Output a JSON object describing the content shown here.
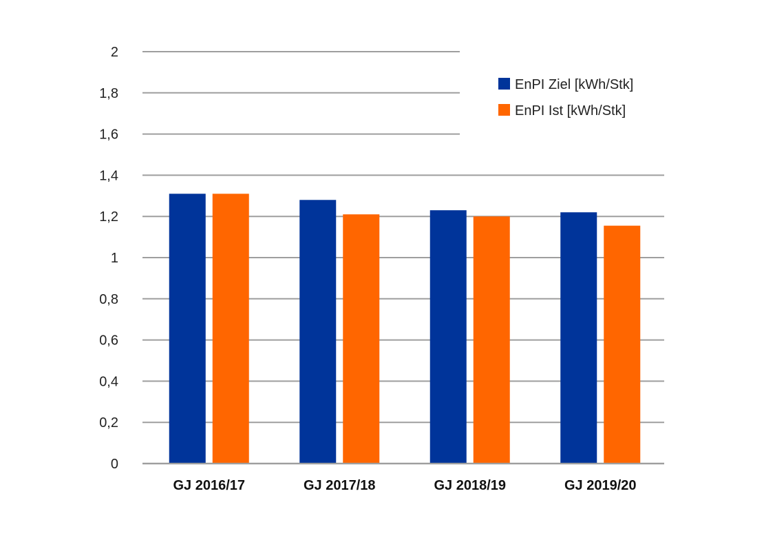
{
  "chart_data": {
    "type": "bar",
    "categories": [
      "GJ 2016/17",
      "GJ 2017/18",
      "GJ 2018/19",
      "GJ 2019/20"
    ],
    "series": [
      {
        "name": "EnPI Ziel [kWh/Stk]",
        "color": "#00349a",
        "values": [
          1.31,
          1.28,
          1.23,
          1.22
        ]
      },
      {
        "name": "EnPI Ist [kWh/Stk]",
        "color": "#ff6600",
        "values": [
          1.31,
          1.21,
          1.2,
          1.155
        ]
      }
    ],
    "y_ticks": [
      "0",
      "0,2",
      "0,4",
      "0,6",
      "0,8",
      "1",
      "1,2",
      "1,4",
      "1,6",
      "1,8",
      "2"
    ],
    "ylim": [
      0,
      2
    ],
    "grid": true,
    "gridline_color": "#9e9e9e",
    "legend_position": "top-right"
  }
}
